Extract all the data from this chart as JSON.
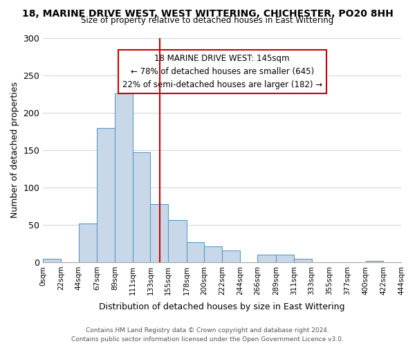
{
  "title": "18, MARINE DRIVE WEST, WEST WITTERING, CHICHESTER, PO20 8HH",
  "subtitle": "Size of property relative to detached houses in East Wittering",
  "xlabel": "Distribution of detached houses by size in East Wittering",
  "ylabel": "Number of detached properties",
  "bar_color": "#c8d8e8",
  "bar_edge_color": "#5a9ac8",
  "bin_edges": [
    0,
    22,
    44,
    67,
    89,
    111,
    133,
    155,
    178,
    200,
    222,
    244,
    266,
    289,
    311,
    333,
    355,
    377,
    400,
    422,
    444
  ],
  "bin_labels": [
    "0sqm",
    "22sqm",
    "44sqm",
    "67sqm",
    "89sqm",
    "111sqm",
    "133sqm",
    "155sqm",
    "178sqm",
    "200sqm",
    "222sqm",
    "244sqm",
    "266sqm",
    "289sqm",
    "311sqm",
    "333sqm",
    "355sqm",
    "377sqm",
    "400sqm",
    "422sqm",
    "444sqm"
  ],
  "bar_heights": [
    5,
    0,
    52,
    180,
    226,
    147,
    78,
    56,
    27,
    21,
    16,
    0,
    10,
    10,
    5,
    0,
    0,
    0,
    2,
    0
  ],
  "vline_x": 145,
  "vline_color": "#cc0000",
  "annotation_title": "18 MARINE DRIVE WEST: 145sqm",
  "annotation_line1": "← 78% of detached houses are smaller (645)",
  "annotation_line2": "22% of semi-detached houses are larger (182) →",
  "annotation_box_color": "#ffffff",
  "annotation_box_edge_color": "#cc0000",
  "footer_line1": "Contains HM Land Registry data © Crown copyright and database right 2024.",
  "footer_line2": "Contains public sector information licensed under the Open Government Licence v3.0.",
  "background_color": "#ffffff",
  "ylim": [
    0,
    300
  ],
  "yticks": [
    0,
    50,
    100,
    150,
    200,
    250,
    300
  ]
}
